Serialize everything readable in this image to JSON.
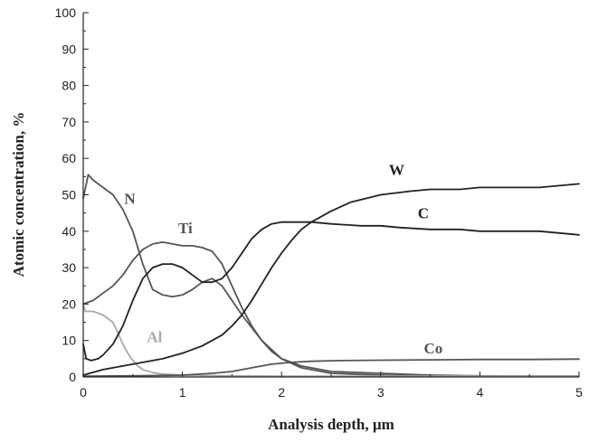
{
  "chart_data": {
    "type": "line",
    "xlabel": "Analysis depth, µm",
    "ylabel": "Atomic concentration, %",
    "xlim": [
      0,
      5
    ],
    "ylim": [
      0,
      100
    ],
    "xticks": [
      0,
      1,
      2,
      3,
      4,
      5
    ],
    "yticks": [
      0,
      10,
      20,
      30,
      40,
      50,
      60,
      70,
      80,
      90,
      100
    ],
    "grid": false,
    "legend": "labels on curves",
    "series": [
      {
        "name": "N",
        "color": "#555555",
        "x": [
          0,
          0.05,
          0.1,
          0.2,
          0.3,
          0.4,
          0.5,
          0.6,
          0.7,
          0.8,
          0.9,
          1.0,
          1.1,
          1.2,
          1.3,
          1.4,
          1.5,
          1.6,
          1.8,
          2.0,
          2.2,
          2.5,
          3.0,
          3.5,
          4.0,
          4.5,
          5.0
        ],
        "values": [
          49,
          55.5,
          54,
          52,
          50,
          46,
          40,
          31,
          24,
          22.5,
          22,
          22.5,
          24,
          26,
          27,
          25,
          21,
          17,
          10,
          5,
          2.5,
          1,
          0.5,
          0.3,
          0.2,
          0.2,
          0.2
        ]
      },
      {
        "name": "Ti",
        "color": "#555555",
        "x": [
          0,
          0.1,
          0.2,
          0.3,
          0.4,
          0.5,
          0.6,
          0.7,
          0.8,
          0.9,
          1.0,
          1.1,
          1.2,
          1.3,
          1.4,
          1.5,
          1.6,
          1.7,
          1.8,
          1.9,
          2.0,
          2.2,
          2.5,
          3.0,
          3.5,
          4.0,
          4.5,
          5.0
        ],
        "values": [
          20,
          21,
          23,
          25,
          28,
          32,
          35,
          36.5,
          37,
          36.5,
          36,
          36,
          35.5,
          34.5,
          31,
          25,
          19,
          14,
          10,
          7,
          5,
          3,
          1.5,
          1,
          0.5,
          0.3,
          0.2,
          0.2
        ]
      },
      {
        "name": "Al",
        "color": "#aaaaaa",
        "x": [
          0,
          0.02,
          0.05,
          0.1,
          0.2,
          0.3,
          0.35,
          0.4,
          0.45,
          0.5,
          0.55,
          0.6,
          0.7,
          0.8,
          1.0,
          1.5,
          2.0,
          3.0,
          4.0,
          5.0
        ],
        "values": [
          20,
          18,
          18,
          18,
          17,
          15,
          12,
          9,
          6.5,
          4.5,
          3,
          2,
          1.2,
          0.8,
          0.5,
          0.3,
          0.2,
          0.2,
          0.2,
          0.2
        ]
      },
      {
        "name": "C",
        "color": "#222222",
        "x": [
          0,
          0.03,
          0.08,
          0.15,
          0.2,
          0.3,
          0.4,
          0.5,
          0.6,
          0.7,
          0.8,
          0.9,
          1.0,
          1.1,
          1.2,
          1.3,
          1.4,
          1.5,
          1.6,
          1.7,
          1.8,
          1.9,
          2.0,
          2.1,
          2.3,
          2.5,
          2.8,
          3.0,
          3.2,
          3.5,
          3.8,
          4.0,
          4.3,
          4.6,
          5.0
        ],
        "values": [
          9,
          5,
          4.5,
          5,
          6,
          9,
          14,
          21,
          27,
          30,
          31,
          31,
          30,
          28,
          26,
          26,
          27,
          30,
          34,
          38,
          40.5,
          42,
          42.5,
          42.5,
          42.5,
          42,
          41.5,
          41.5,
          41,
          40.5,
          40.5,
          40,
          40,
          40,
          39
        ]
      },
      {
        "name": "W",
        "color": "#222222",
        "x": [
          0,
          0.2,
          0.4,
          0.6,
          0.8,
          1.0,
          1.2,
          1.4,
          1.5,
          1.6,
          1.7,
          1.8,
          1.9,
          2.0,
          2.1,
          2.2,
          2.3,
          2.5,
          2.7,
          3.0,
          3.3,
          3.5,
          3.8,
          4.0,
          4.3,
          4.6,
          5.0
        ],
        "values": [
          0.5,
          2,
          3,
          4,
          5,
          6.5,
          8.5,
          11.5,
          14,
          17,
          21,
          25.5,
          30,
          34,
          37.5,
          40.5,
          42.5,
          45.5,
          48,
          50,
          51,
          51.5,
          51.5,
          52,
          52,
          52,
          53
        ]
      },
      {
        "name": "Co",
        "color": "#555555",
        "x": [
          0,
          0.5,
          1.0,
          1.3,
          1.5,
          1.7,
          1.9,
          2.1,
          2.3,
          2.6,
          3.0,
          3.5,
          4.0,
          4.5,
          5.0
        ],
        "values": [
          0.2,
          0.3,
          0.5,
          1,
          1.5,
          2.5,
          3.5,
          4,
          4.3,
          4.5,
          4.6,
          4.7,
          4.8,
          4.8,
          4.9
        ]
      }
    ],
    "annotations": [
      {
        "text": "N",
        "x": 0.47,
        "y": 47.5,
        "color": "#555555"
      },
      {
        "text": "Ti",
        "x": 1.03,
        "y": 39.5,
        "color": "#555555"
      },
      {
        "text": "Al",
        "x": 0.72,
        "y": 9.5,
        "color": "#aaaaaa"
      },
      {
        "text": "W",
        "x": 3.16,
        "y": 55.5,
        "color": "#222222"
      },
      {
        "text": "C",
        "x": 3.43,
        "y": 43.5,
        "color": "#222222"
      },
      {
        "text": "Co",
        "x": 3.53,
        "y": 6.5,
        "color": "#555555"
      }
    ]
  }
}
